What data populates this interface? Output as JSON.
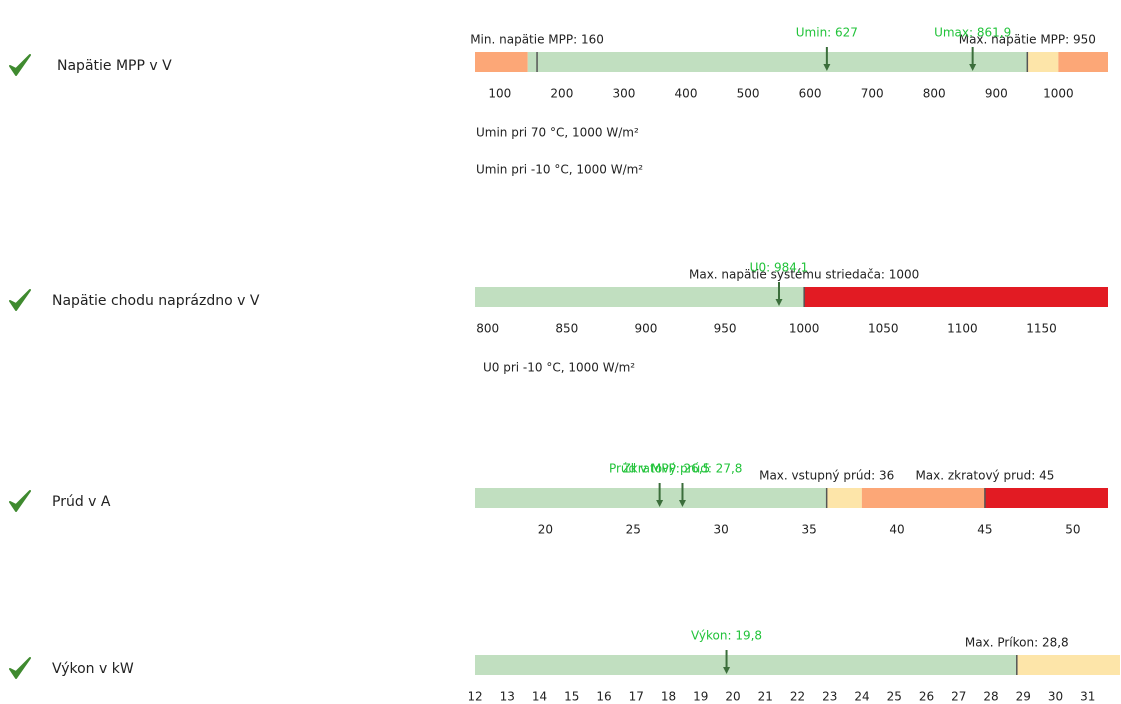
{
  "gauges": [
    {
      "label": "Napätie MPP v V",
      "lim": [
        60,
        1080
      ],
      "ticks": [
        100,
        200,
        300,
        400,
        500,
        600,
        700,
        800,
        900,
        1000
      ],
      "segments": [
        {
          "from": 60,
          "to": 145,
          "color": "#fca777"
        },
        {
          "from": 145,
          "to": 950,
          "color": "#c1dfc0"
        },
        {
          "from": 950,
          "to": 1000,
          "color": "#fde5a9"
        },
        {
          "from": 1000,
          "to": 1080,
          "color": "#fca777"
        }
      ],
      "limits": [
        {
          "label": "Min. napätie MPP: 160",
          "value": 160
        },
        {
          "label": "Max. napätie MPP: 950",
          "value": 950
        }
      ],
      "markers": [
        {
          "label": "Umin: 627",
          "value": 627
        },
        {
          "label": "Umax: 861,9",
          "value": 861.9
        }
      ],
      "notes": [
        "Umin pri 70 °C, 1000 W/m²",
        "Umin pri -10 °C, 1000 W/m²"
      ]
    },
    {
      "label": "Napätie chodu naprázdno v V",
      "lim": [
        792,
        1192
      ],
      "ticks": [
        800,
        850,
        900,
        950,
        1000,
        1050,
        1100,
        1150
      ],
      "segments": [
        {
          "from": 792,
          "to": 1000,
          "color": "#c1dfc0"
        },
        {
          "from": 1000,
          "to": 1192,
          "color": "#e21b23"
        }
      ],
      "limits": [
        {
          "label": "Max. napätie systému striedača: 1000",
          "value": 1000
        }
      ],
      "markers": [
        {
          "label": "U0: 984,1",
          "value": 984.1
        }
      ],
      "notes": [
        "U0 pri -10 °C, 1000 W/m²"
      ]
    },
    {
      "label": "Prúd v A",
      "lim": [
        16,
        52
      ],
      "ticks": [
        20,
        25,
        30,
        35,
        40,
        45,
        50
      ],
      "segments": [
        {
          "from": 16,
          "to": 36,
          "color": "#c1dfc0"
        },
        {
          "from": 36,
          "to": 38,
          "color": "#fde5a9"
        },
        {
          "from": 38,
          "to": 45,
          "color": "#fca777"
        },
        {
          "from": 45,
          "to": 52,
          "color": "#e21b23"
        }
      ],
      "limits": [
        {
          "label": "Max. vstupný prúd: 36",
          "value": 36
        },
        {
          "label": "Max. zkratový prud: 45",
          "value": 45
        }
      ],
      "markers": [
        {
          "label": "Prúd v MPP: 26,5",
          "value": 26.5
        },
        {
          "label": "Zkratový prúd: 27,8",
          "value": 27.8
        }
      ],
      "notes": []
    },
    {
      "label": "Výkon v kW",
      "lim": [
        12,
        32
      ],
      "ticks": [
        12,
        13,
        14,
        15,
        16,
        17,
        18,
        19,
        20,
        21,
        22,
        23,
        24,
        25,
        26,
        27,
        28,
        29,
        30,
        31
      ],
      "segments": [
        {
          "from": 12,
          "to": 28.8,
          "color": "#c1dfc0"
        },
        {
          "from": 28.8,
          "to": 32,
          "color": "#fde5a9"
        }
      ],
      "limits": [
        {
          "label": "Max. Príkon: 28,8",
          "value": 28.8
        }
      ],
      "markers": [
        {
          "label": "Výkon: 19,8",
          "value": 19.8
        }
      ],
      "notes": []
    }
  ]
}
